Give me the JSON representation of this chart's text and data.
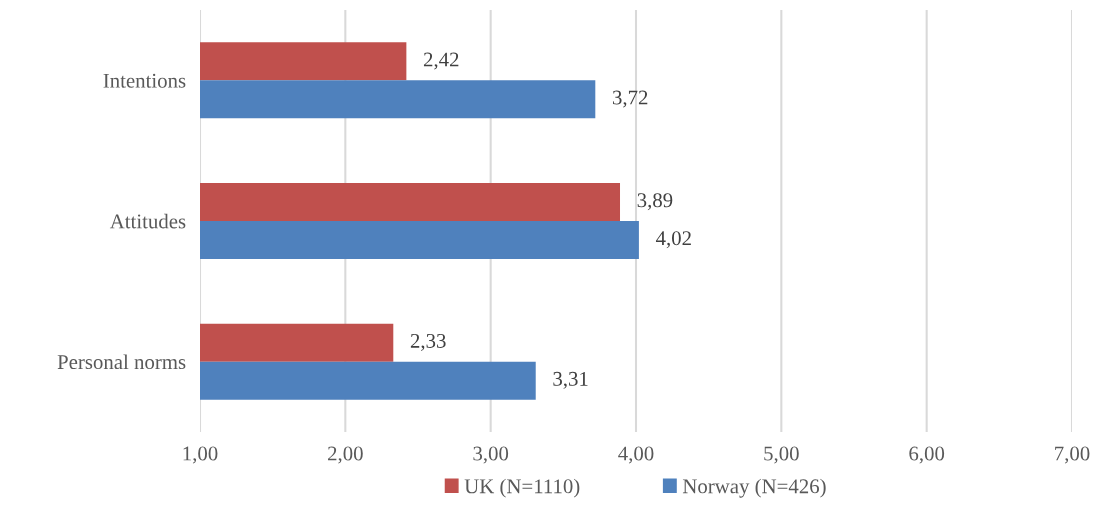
{
  "chart_data": {
    "type": "bar",
    "orientation": "horizontal",
    "categories": [
      "Intentions",
      "Attitudes",
      "Personal norms"
    ],
    "series": [
      {
        "name": "UK (N=1110)",
        "color": "#c0504d",
        "values": [
          2.42,
          3.89,
          2.33
        ],
        "value_labels": [
          "2,42",
          "3,89",
          "2,33"
        ]
      },
      {
        "name": "Norway (N=426)",
        "color": "#4f81bd",
        "values": [
          3.72,
          4.02,
          3.31
        ],
        "value_labels": [
          "3,72",
          "4,02",
          "3,31"
        ]
      }
    ],
    "xlim": [
      1,
      7
    ],
    "xticks": [
      {
        "value": 1,
        "label": "1,00"
      },
      {
        "value": 2,
        "label": "2,00"
      },
      {
        "value": 3,
        "label": "3,00"
      },
      {
        "value": 4,
        "label": "4,00"
      },
      {
        "value": 5,
        "label": "5,00"
      },
      {
        "value": 6,
        "label": "6,00"
      },
      {
        "value": 7,
        "label": "7,00"
      }
    ],
    "grid": "x",
    "legend": "bottom"
  }
}
